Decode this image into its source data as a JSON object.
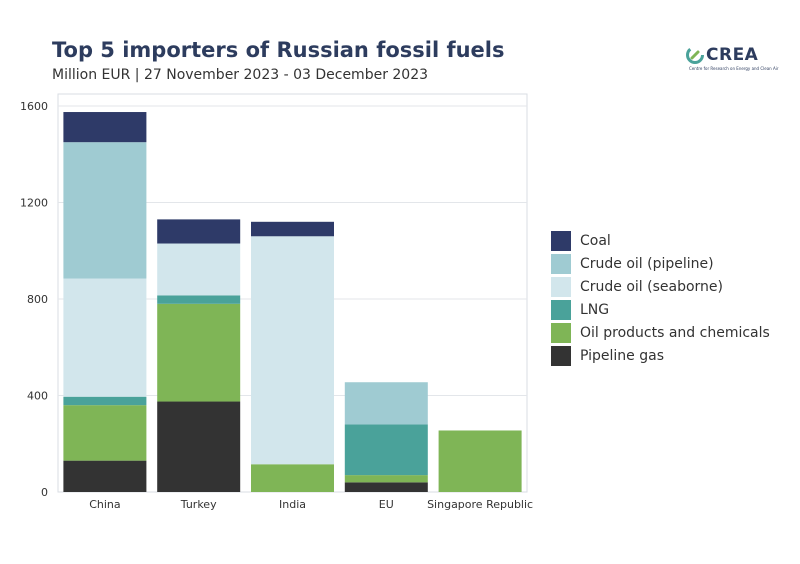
{
  "header": {
    "title": "Top 5 importers of Russian fossil fuels",
    "subtitle": "Million EUR | 27 November 2023 - 03 December 2023"
  },
  "logo": {
    "wordmark": "CREA",
    "tagline": "Centre for Research on Energy and Clean Air"
  },
  "colors": {
    "Coal": "#2e3a68",
    "Crude oil (pipeline)": "#9fcbd2",
    "Crude oil (seaborne)": "#d2e6ec",
    "LNG": "#4aa29a",
    "Oil products and chemicals": "#7fb556",
    "Pipeline gas": "#333333"
  },
  "chart_data": {
    "type": "bar",
    "stacked": true,
    "categories": [
      "China",
      "Turkey",
      "India",
      "EU",
      "Singapore Republic"
    ],
    "series": [
      {
        "name": "Pipeline gas",
        "values": [
          130,
          375,
          0,
          40,
          0
        ]
      },
      {
        "name": "Oil products and chemicals",
        "values": [
          230,
          405,
          115,
          30,
          255
        ]
      },
      {
        "name": "LNG",
        "values": [
          35,
          35,
          0,
          210,
          0
        ]
      },
      {
        "name": "Crude oil (seaborne)",
        "values": [
          490,
          215,
          945,
          0,
          0
        ]
      },
      {
        "name": "Crude oil (pipeline)",
        "values": [
          565,
          0,
          0,
          175,
          0
        ]
      },
      {
        "name": "Coal",
        "values": [
          125,
          100,
          60,
          0,
          0
        ]
      }
    ],
    "legend_order": [
      "Coal",
      "Crude oil (pipeline)",
      "Crude oil (seaborne)",
      "LNG",
      "Oil products and chemicals",
      "Pipeline gas"
    ],
    "yticks": [
      "0",
      "400",
      "800",
      "1200",
      "1600"
    ],
    "ylim": [
      0,
      1600
    ],
    "grid": true,
    "legend_position": "right"
  }
}
